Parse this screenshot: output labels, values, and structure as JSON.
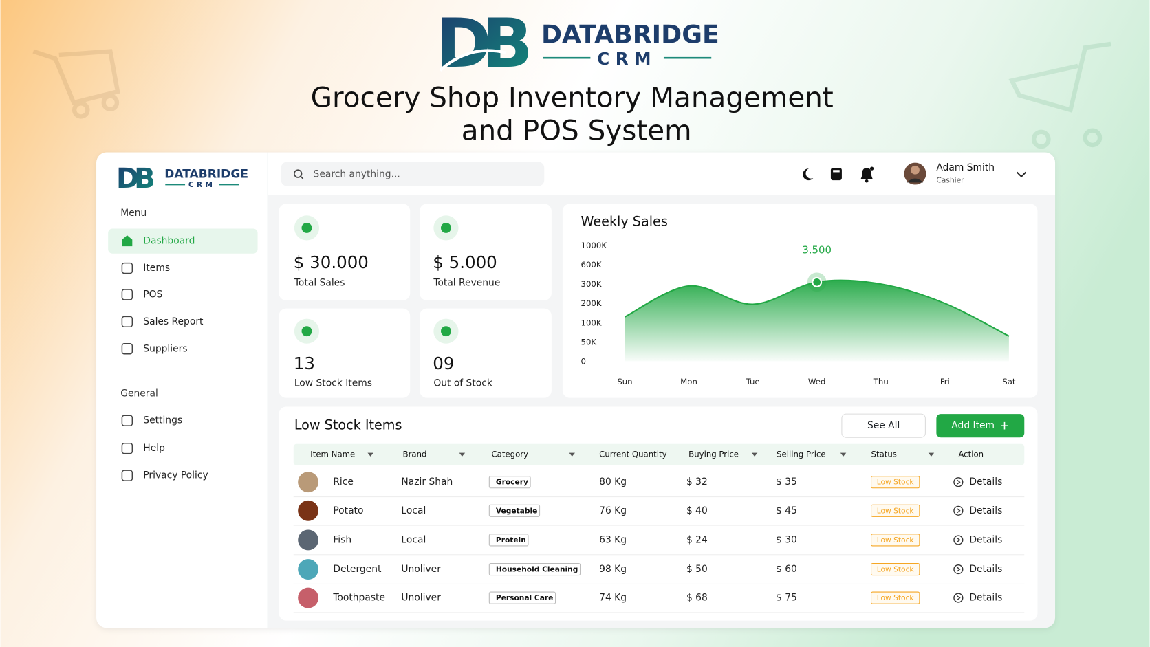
{
  "header": {
    "brand": "DATABRIDGE",
    "sub": "CRM",
    "title_lines": [
      "Grocery Shop Inventory Management",
      "and POS System"
    ]
  },
  "sidebar": {
    "brand": "DATABRIDGE",
    "sub": "CRM",
    "menu_label": "Menu",
    "menu": [
      "Dashboard",
      "Items",
      "POS",
      "Sales Report",
      "Suppliers"
    ],
    "general_label": "General",
    "general": [
      "Settings",
      "Help",
      "Privacy Policy"
    ]
  },
  "topbar": {
    "search": "Search anything...",
    "user": {
      "name": "Adam Smith",
      "role": "Cashier"
    }
  },
  "stats": [
    {
      "value": "$ 30.000",
      "label": "Total Sales"
    },
    {
      "value": "$ 5.000",
      "label": "Total Revenue"
    },
    {
      "value": "13",
      "label": "Low Stock Items"
    },
    {
      "value": "09",
      "label": "Out of Stock"
    }
  ],
  "chart_data": {
    "type": "area",
    "title": "Weekly Sales",
    "categories": [
      "Sun",
      "Mon",
      "Tue",
      "Wed",
      "Thu",
      "Fri",
      "Sat"
    ],
    "values": [
      130000,
      290000,
      195000,
      330000,
      300000,
      200000,
      65000
    ],
    "color": "#22a845",
    "annotation": "3.500",
    "ylim": [
      0,
      1000000
    ],
    "yticks": [
      0,
      {
        "value": 50000,
        "label": "50K"
      },
      {
        "value": 100000,
        "label": "100K"
      },
      {
        "value": 200000,
        "label": "200K"
      },
      {
        "value": 300000,
        "label": "300K"
      },
      {
        "value": 600000,
        "label": "600K"
      },
      {
        "value": 1000000,
        "label": "1000K"
      }
    ]
  },
  "table": {
    "title": "Low Stock Items",
    "buttons": [
      "See All",
      "Add Item"
    ],
    "columns": [
      "Item Name",
      "Brand",
      "Category",
      "Current Quantity",
      "Buying Price",
      "Selling Price",
      "Status",
      "Action"
    ],
    "rows": [
      [
        "Rice",
        "Nazir Shah",
        "Grocery",
        "80 Kg",
        "$ 32",
        "$ 35",
        "Low Stock",
        "Details"
      ],
      [
        "Potato",
        "Local",
        "Vegetable",
        "76 Kg",
        "$ 40",
        "$ 45",
        "Low Stock",
        "Details"
      ],
      [
        "Fish",
        "Local",
        "Protein",
        "63 Kg",
        "$ 24",
        "$ 30",
        "Low Stock",
        "Details"
      ],
      [
        "Detergent",
        "Unoliver",
        "Household Cleaning",
        "98 Kg",
        "$ 50",
        "$ 60",
        "Low Stock",
        "Details"
      ],
      [
        "Toothpaste",
        "Unoliver",
        "Personal Care",
        "74 Kg",
        "$ 68",
        "$ 75",
        "Low Stock",
        "Details"
      ]
    ]
  }
}
